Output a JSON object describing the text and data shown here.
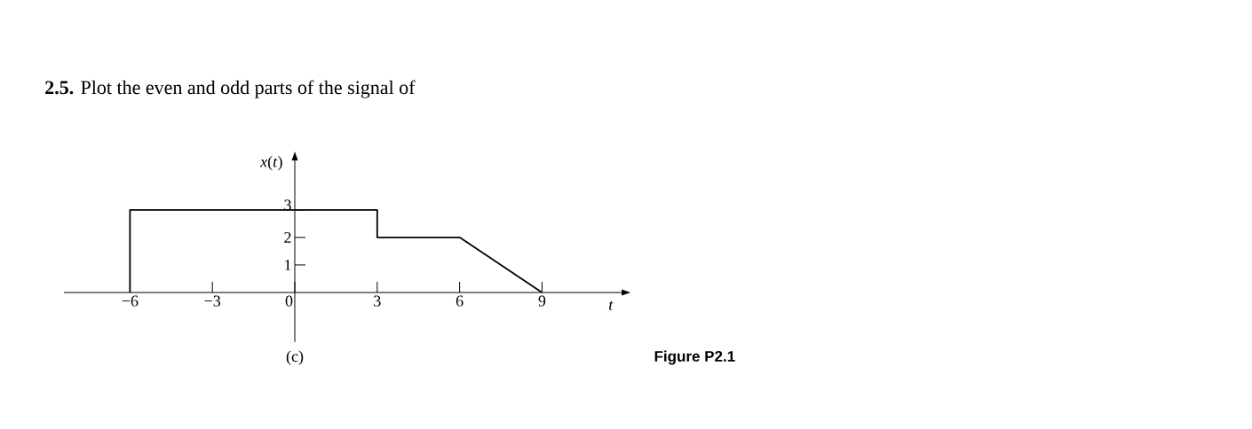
{
  "chart_data": {
    "type": "line",
    "title": "**2.5.** Plot the even and odd parts of the signal of",
    "xlabel": "t",
    "ylabel": "*x*(*t*)",
    "annotations": [
      "(c)",
      "Figure P2.1"
    ],
    "x": [
      -6,
      -6,
      3,
      3,
      6,
      9
    ],
    "values": [
      0,
      3,
      3,
      2,
      2,
      0
    ],
    "color": "#000000",
    "xlim": [
      -8.4,
      11.9
    ],
    "ylim": [
      -1.8,
      4.8
    ],
    "xticks": [
      {
        "value": -6,
        "label": "−6"
      },
      {
        "value": -3,
        "label": "−3"
      },
      0,
      3,
      6,
      9
    ],
    "yticks": [
      1,
      2,
      3
    ]
  }
}
